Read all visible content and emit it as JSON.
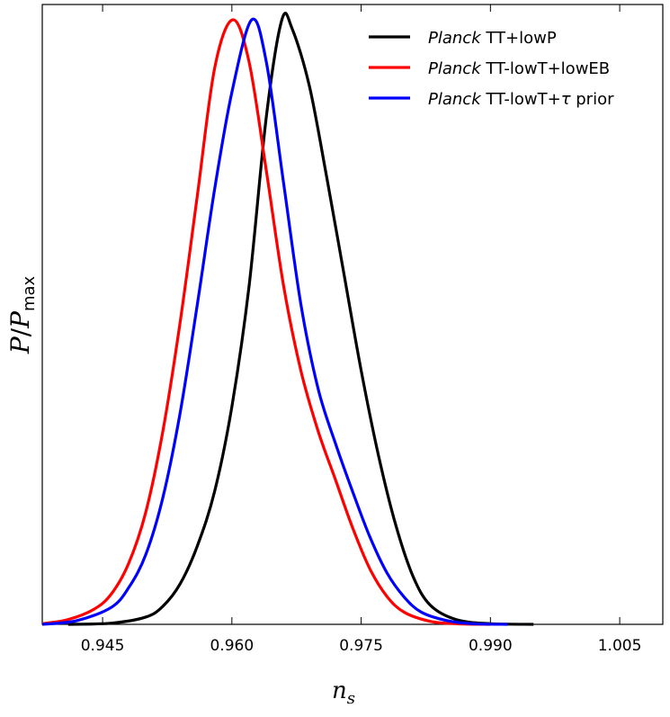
{
  "chart_data": {
    "type": "line",
    "xlabel_main": "n",
    "xlabel_sub": "s",
    "ylabel_main": "P",
    "ylabel_sep": "/",
    "ylabel_main2": "P",
    "ylabel_sub": "max",
    "xlim": [
      0.938,
      1.01
    ],
    "ylim": [
      0,
      1.0
    ],
    "xticks": [
      0.945,
      0.96,
      0.975,
      0.99,
      1.005
    ],
    "xtick_labels": [
      "0.945",
      "0.960",
      "0.975",
      "0.990",
      "1.005"
    ],
    "yticks_shown": false,
    "grid": false,
    "legend_position": "top-right",
    "series": [
      {
        "name_italic": "Planck",
        "name_rest": " TT+lowP",
        "color": "#000000",
        "x": [
          0.941,
          0.946,
          0.95,
          0.952,
          0.954,
          0.956,
          0.958,
          0.96,
          0.962,
          0.964,
          0.9658,
          0.967,
          0.969,
          0.971,
          0.973,
          0.975,
          0.977,
          0.979,
          0.981,
          0.983,
          0.986,
          0.99,
          0.995
        ],
        "y": [
          0.0,
          0.002,
          0.012,
          0.03,
          0.067,
          0.13,
          0.22,
          0.36,
          0.56,
          0.84,
          1.0,
          0.985,
          0.89,
          0.74,
          0.58,
          0.42,
          0.28,
          0.165,
          0.08,
          0.032,
          0.008,
          0.001,
          0.0
        ]
      },
      {
        "name_italic": "Planck",
        "name_rest": " TT-lowT+lowEB",
        "color": "#ff0000",
        "x": [
          0.938,
          0.941,
          0.944,
          0.946,
          0.948,
          0.95,
          0.952,
          0.954,
          0.956,
          0.958,
          0.9601,
          0.962,
          0.964,
          0.966,
          0.968,
          0.97,
          0.972,
          0.974,
          0.976,
          0.978,
          0.98,
          0.983,
          0.986,
          0.99
        ],
        "y": [
          0.001,
          0.008,
          0.025,
          0.05,
          0.1,
          0.185,
          0.32,
          0.5,
          0.71,
          0.92,
          1.0,
          0.93,
          0.75,
          0.56,
          0.42,
          0.32,
          0.24,
          0.16,
          0.092,
          0.046,
          0.02,
          0.005,
          0.001,
          0.0
        ]
      },
      {
        "name_italic": "Planck",
        "name_rest": " TT-lowT+",
        "name_tau": "τ",
        "name_after": " prior",
        "color": "#0000ff",
        "x": [
          0.938,
          0.942,
          0.946,
          0.948,
          0.95,
          0.952,
          0.954,
          0.956,
          0.958,
          0.96,
          0.9623,
          0.964,
          0.966,
          0.968,
          0.97,
          0.972,
          0.974,
          0.976,
          0.978,
          0.98,
          0.982,
          0.985,
          0.988,
          0.992
        ],
        "y": [
          0.0,
          0.006,
          0.028,
          0.06,
          0.115,
          0.21,
          0.35,
          0.53,
          0.72,
          0.88,
          1.0,
          0.93,
          0.73,
          0.53,
          0.39,
          0.3,
          0.22,
          0.145,
          0.085,
          0.045,
          0.02,
          0.006,
          0.001,
          0.0
        ]
      }
    ]
  }
}
